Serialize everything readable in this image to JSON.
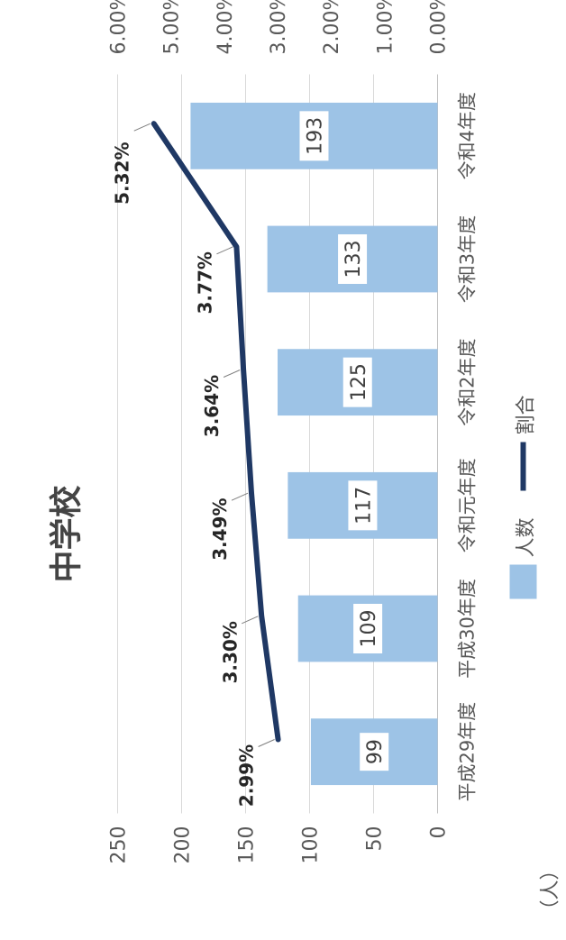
{
  "chart_data": {
    "type": "bar",
    "title": "中学校",
    "y_unit": "（人）",
    "categories": [
      "平成29年度",
      "平成30年度",
      "令和元年度",
      "令和2年度",
      "令和3年度",
      "令和4年度"
    ],
    "series": [
      {
        "name": "人数",
        "type": "bar",
        "axis": "left",
        "values": [
          99,
          109,
          117,
          125,
          133,
          193
        ],
        "labels": [
          "99",
          "109",
          "117",
          "125",
          "133",
          "193"
        ],
        "color": "#9DC3E6"
      },
      {
        "name": "割合",
        "type": "line",
        "axis": "right",
        "values": [
          2.99,
          3.3,
          3.49,
          3.64,
          3.77,
          5.32
        ],
        "labels": [
          "2.99%",
          "3.30%",
          "3.49%",
          "3.64%",
          "3.77%",
          "5.32%"
        ],
        "color": "#1F3864"
      }
    ],
    "left_axis": {
      "min": 0,
      "max": 250,
      "step": 50,
      "ticks": [
        "0",
        "50",
        "100",
        "150",
        "200",
        "250"
      ]
    },
    "right_axis": {
      "min": 0,
      "max": 6,
      "step": 1,
      "ticks": [
        "0.00%",
        "1.00%",
        "2.00%",
        "3.00%",
        "4.00%",
        "5.00%",
        "6.00%"
      ]
    },
    "grid": true,
    "legend": "bottom"
  }
}
